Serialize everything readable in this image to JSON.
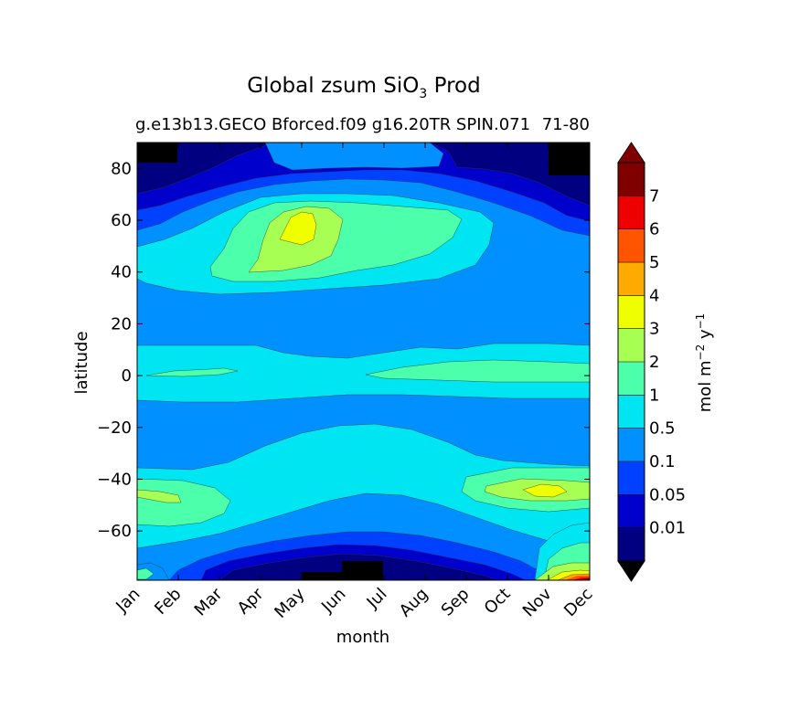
{
  "chart_data": {
    "type": "contourf",
    "title_main": "Global zsum SiO",
    "title_sub": "3",
    "title_tail": " Prod",
    "case_label": "g.e13b13.GECO Bforced.f09 g16.20TR SPIN.071",
    "years_label": "71-80",
    "xlabel": "month",
    "ylabel": "latitude",
    "x_categories": [
      "Jan",
      "Feb",
      "Mar",
      "Apr",
      "May",
      "Jun",
      "Jul",
      "Aug",
      "Sep",
      "Oct",
      "Nov",
      "Dec"
    ],
    "y_ticks": [
      80,
      60,
      40,
      20,
      0,
      -20,
      -40,
      -60
    ],
    "ylim": [
      -79,
      90
    ],
    "colorbar": {
      "unit_prefix": "mol m",
      "unit_exp1": "−2",
      "unit_mid": " y",
      "unit_exp2": "−1",
      "levels": [
        "0.01",
        "0.05",
        "0.1",
        "0.5",
        "1",
        "2",
        "3",
        "4",
        "5",
        "6",
        "7"
      ],
      "colors": [
        "#000080",
        "#0000cd",
        "#0040ff",
        "#0090ff",
        "#00e5f2",
        "#4cffab",
        "#a6ff52",
        "#f0ff00",
        "#ffaa00",
        "#ff5500",
        "#ee0000",
        "#800000"
      ],
      "under_color": "#000000"
    }
  }
}
